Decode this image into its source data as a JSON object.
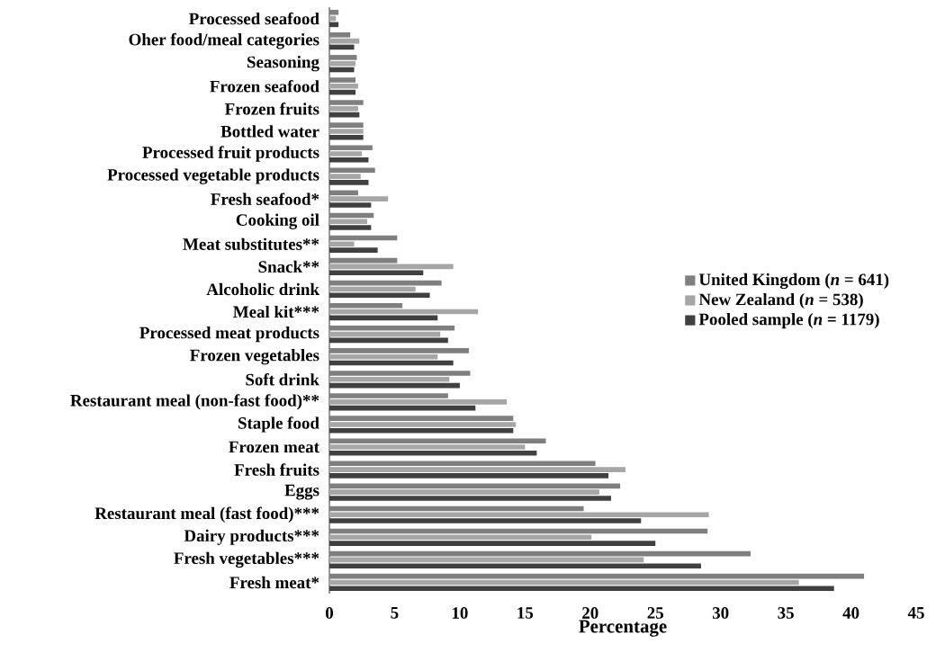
{
  "chart_data": {
    "type": "bar",
    "orientation": "horizontal",
    "xlabel": "Percentage",
    "categories": [
      "Processed seafood",
      "Oher food/meal categories",
      "Seasoning",
      "Frozen seafood",
      "Frozen fruits",
      "Bottled water",
      "Processed fruit products",
      "Processed vegetable products",
      "Fresh seafood*",
      "Cooking oil",
      "Meat substitutes**",
      "Snack**",
      "Alcoholic drink",
      "Meal kit***",
      "Processed meat products",
      "Frozen vegetables",
      "Soft drink",
      "Restaurant meal (non-fast food)**",
      "Staple food",
      "Frozen meat",
      "Fresh fruits",
      "Eggs",
      "Restaurant meal (fast food)***",
      "Dairy products***",
      "Fresh vegetables***",
      "Fresh meat*"
    ],
    "series": [
      {
        "name": "United Kingdom (*n* = 641)",
        "color": "#7f7f7f",
        "values": [
          0.7,
          1.6,
          2.1,
          2.0,
          2.6,
          2.6,
          3.3,
          3.5,
          2.2,
          3.4,
          5.2,
          5.2,
          8.6,
          5.6,
          9.6,
          10.7,
          10.8,
          9.1,
          14.1,
          16.6,
          20.4,
          22.3,
          19.5,
          29.0,
          32.3,
          41.0
        ]
      },
      {
        "name": "New Zealand (*n* = 538)",
        "color": "#a6a6a6",
        "values": [
          0.5,
          2.3,
          2.0,
          2.2,
          2.2,
          2.6,
          2.5,
          2.4,
          4.5,
          2.9,
          1.9,
          9.5,
          6.6,
          11.4,
          8.5,
          8.3,
          9.2,
          13.6,
          14.3,
          15.0,
          22.7,
          20.7,
          29.1,
          20.1,
          24.1,
          36.0
        ]
      },
      {
        "name": "Pooled sample (*n* = 1179)",
        "color": "#404040",
        "values": [
          0.7,
          1.9,
          1.9,
          2.0,
          2.3,
          2.6,
          3.0,
          3.0,
          3.2,
          3.2,
          3.7,
          7.2,
          7.7,
          8.3,
          9.1,
          9.5,
          10.0,
          11.2,
          14.1,
          15.9,
          21.4,
          21.6,
          23.9,
          25.0,
          28.5,
          38.7
        ]
      }
    ],
    "xlim": [
      0,
      45
    ],
    "xticks": [
      0,
      5,
      10,
      15,
      20,
      25,
      30,
      35,
      40,
      45
    ],
    "legend": "right"
  }
}
